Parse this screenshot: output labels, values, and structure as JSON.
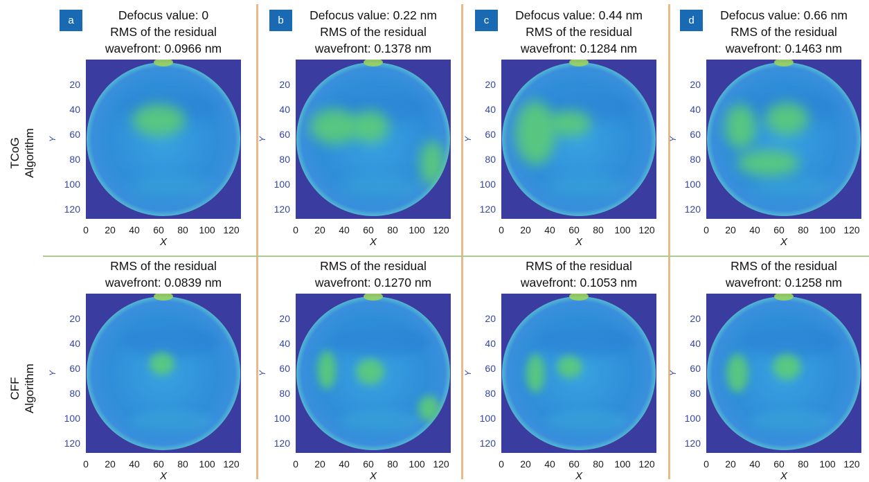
{
  "row_labels": [
    {
      "method": "TCoG",
      "suffix": "Algorithm"
    },
    {
      "method": "CFF",
      "suffix": "Algorithm"
    }
  ],
  "panels": [
    {
      "badge": "a",
      "defocus_line": "Defocus value: 0",
      "tcog": {
        "rms_line1": "RMS of the residual",
        "rms_line2": "wavefront: 0.0966 nm"
      },
      "cff": {
        "rms_line1": "RMS of the residual",
        "rms_line2": "wavefront: 0.0839 nm"
      }
    },
    {
      "badge": "b",
      "defocus_line": "Defocus value: 0.22 nm",
      "tcog": {
        "rms_line1": "RMS of the residual",
        "rms_line2": "wavefront: 0.1378 nm"
      },
      "cff": {
        "rms_line1": "RMS of the residual",
        "rms_line2": "wavefront: 0.1270 nm"
      }
    },
    {
      "badge": "c",
      "defocus_line": "Defocus value: 0.44 nm",
      "tcog": {
        "rms_line1": "RMS of the residual",
        "rms_line2": "wavefront: 0.1284 nm"
      },
      "cff": {
        "rms_line1": "RMS of the residual",
        "rms_line2": "wavefront: 0.1053 nm"
      }
    },
    {
      "badge": "d",
      "defocus_line": "Defocus value: 0.66 nm",
      "tcog": {
        "rms_line1": "RMS of the residual",
        "rms_line2": "wavefront: 0.1463 nm"
      },
      "cff": {
        "rms_line1": "RMS of the residual",
        "rms_line2": "wavefront: 0.1258 nm"
      }
    }
  ],
  "axes": {
    "xlabel": "X",
    "ylabel": "Y",
    "xticks": [
      "0",
      "20",
      "40",
      "60",
      "80",
      "100",
      "120"
    ],
    "yticks": [
      "20",
      "40",
      "60",
      "80",
      "100",
      "120"
    ],
    "xlim": [
      0,
      128
    ],
    "ylim": [
      0,
      128
    ]
  },
  "colors": {
    "badge": "#1a6ab3",
    "background_field": "#3a3ca0",
    "wavefront_base": "#2f8ed9",
    "wavefront_high": "#5fcf72",
    "ytick_color": "#3346a6",
    "column_separator": "#e8b98a",
    "row_separator": "#a7d08c"
  }
}
